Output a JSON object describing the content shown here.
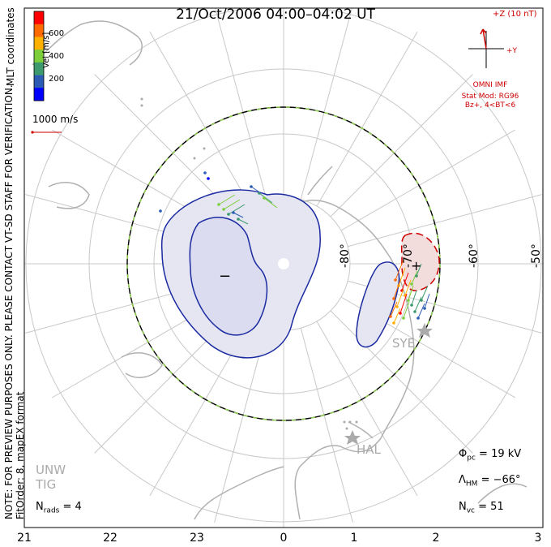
{
  "title": "21/Oct/2006 04:00–04:02 UT",
  "side_note": {
    "line1": "NOTE: FOR PREVIEW PURPOSES ONLY. PLEASE CONTACT VT-SD STAFF FOR VERIFICATION.",
    "line2": "FitOrder: 8, mapEX format"
  },
  "coord_system": "MLT coordinates",
  "velocity_legend": {
    "unit_label": "Vel [m/s]",
    "ticks": [
      "600",
      "400",
      "200"
    ],
    "colors": [
      "#ff0000",
      "#ff6a00",
      "#ffb000",
      "#7ccf3a",
      "#3c9a6e",
      "#2b5bb5",
      "#0000ff"
    ]
  },
  "reference_vector": {
    "label": "1000 m/s",
    "color": "#cc0000"
  },
  "imf": {
    "z_label": "+Z (10 nT)",
    "y_label": "+Y",
    "source": "OMNI IMF",
    "stat_mod_line1": "Stat Mod: RG96",
    "stat_mod_line2": "Bz+, 4<BT<6",
    "color": "#cc0000"
  },
  "latitude_labels": [
    "-80°",
    "-70°",
    "-60°",
    "-50°"
  ],
  "mlt_ticks": [
    "21",
    "22",
    "23",
    "0",
    "1",
    "2",
    "3"
  ],
  "stations": [
    "SYE",
    "HAL",
    "UNW",
    "TIG"
  ],
  "stats": {
    "phi_pc": {
      "symbol": "Φ",
      "sub": "pc",
      "value": "= 19 kV"
    },
    "lambda_hm": {
      "symbol": "Λ",
      "sub": "HM",
      "value": "= −66°"
    },
    "n_vc": {
      "symbol": "N",
      "sub": "vc",
      "value": "= 51"
    },
    "n_rads": {
      "symbol": "N",
      "sub": "rads",
      "value": "= 4"
    }
  },
  "contour_markers": {
    "min": "−",
    "max": "+"
  },
  "colors": {
    "grid": "#c8c8c8",
    "continent": "#b0b0b0",
    "negative_cell": "#e6e6f3",
    "negative_line": "#1a2aa0",
    "positive_cell": "#f3dcdc",
    "positive_line": "#cc0000",
    "hmb_dash": "#8ed14a"
  }
}
